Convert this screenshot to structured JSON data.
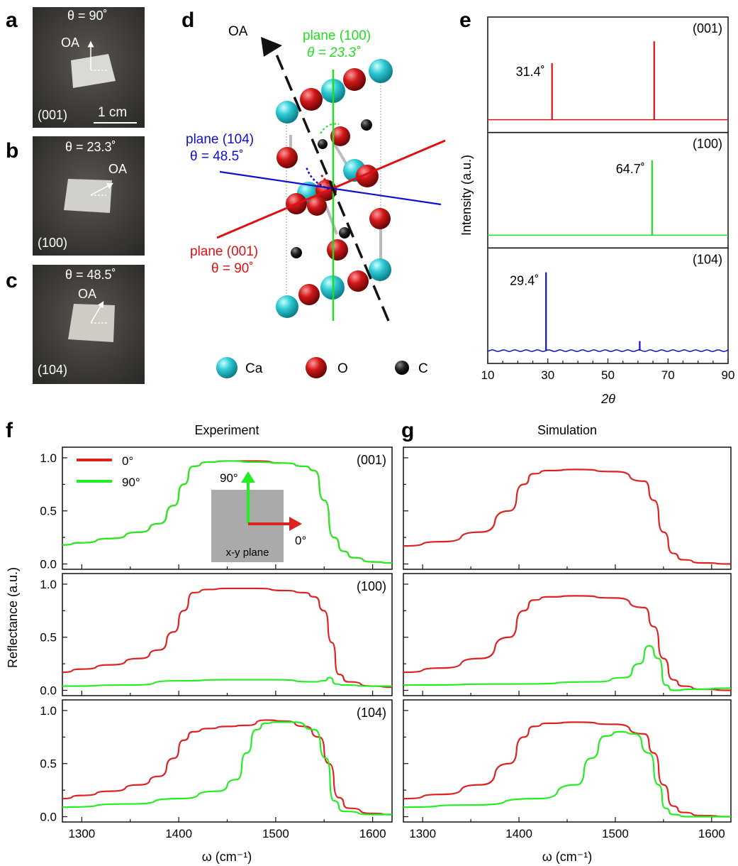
{
  "photos": [
    {
      "letter": "a",
      "theta": "θ = 90˚",
      "oa": "OA",
      "plane": "(001)",
      "scale": "1 cm"
    },
    {
      "letter": "b",
      "theta": "θ = 23.3˚",
      "oa": "OA",
      "plane": "(100)"
    },
    {
      "letter": "c",
      "theta": "θ = 48.5˚",
      "oa": "OA",
      "plane": "(104)"
    }
  ],
  "crystal": {
    "letter": "d",
    "oa": "OA",
    "plane100": {
      "name": "plane (100)",
      "theta": "θ = 23.3˚",
      "color": "#22dd22"
    },
    "plane104": {
      "name": "plane (104)",
      "theta": "θ = 48.5˚",
      "color": "#1010cc"
    },
    "plane001": {
      "name": "plane (001)",
      "theta": "θ = 90˚",
      "color": "#dd1111"
    },
    "legend": [
      {
        "atom": "Ca",
        "color": "#2ec9d3"
      },
      {
        "atom": "O",
        "color": "#d01818"
      },
      {
        "atom": "C",
        "color": "#111111"
      }
    ]
  },
  "xrd": {
    "letter": "e",
    "ylabel": "Intensity (a.u.)",
    "xlabel": "2θ",
    "xticks": [
      "10",
      "30",
      "50",
      "70",
      "90"
    ]
  },
  "refl": {
    "letter_f": "f",
    "letter_g": "g",
    "title_f": "Experiment",
    "title_g": "Simulation",
    "ylabel": "Reflectance (a.u.)",
    "xlabel": "ω (cm⁻¹)",
    "xticks": [
      "1300",
      "1400",
      "1500",
      "1600"
    ],
    "yticks": [
      "0.0",
      "0.5",
      "1.0"
    ],
    "legend": [
      {
        "label": "0°",
        "color": "#dd2222"
      },
      {
        "label": "90°",
        "color": "#22ee22"
      }
    ],
    "inset": {
      "v": "90°",
      "h": "0°",
      "plane": "x-y plane"
    }
  },
  "chart_data": [
    {
      "type": "line",
      "title": "",
      "xlabel": "2θ",
      "ylabel": "Intensity (a.u.)",
      "xlim": [
        10,
        90
      ],
      "panels": [
        {
          "label": "(001)",
          "color": "#dd1111",
          "peaks": [
            {
              "x": 31.4,
              "h": 0.65,
              "text": "31.4˚"
            },
            {
              "x": 65.4,
              "h": 0.9
            }
          ]
        },
        {
          "label": "(100)",
          "color": "#22dd22",
          "peaks": [
            {
              "x": 64.7,
              "h": 0.86,
              "text": "64.7˚"
            }
          ]
        },
        {
          "label": "(104)",
          "color": "#1010cc",
          "peaks": [
            {
              "x": 29.4,
              "h": 0.9,
              "text": "29.4˚"
            },
            {
              "x": 60.6,
              "h": 0.11
            }
          ]
        }
      ]
    },
    {
      "type": "line",
      "title": "Experiment",
      "xlabel": "ω (cm⁻¹)",
      "ylabel": "Reflectance (a.u.)",
      "xlim": [
        1280,
        1620
      ],
      "ylim": [
        -0.05,
        1.1
      ],
      "panels": [
        {
          "label": "(001)",
          "series": [
            {
              "name": "0°",
              "color": "#dd2222",
              "x": [
                1280,
                1300,
                1330,
                1360,
                1380,
                1395,
                1405,
                1415,
                1430,
                1450,
                1480,
                1510,
                1530,
                1540,
                1550,
                1560,
                1570,
                1580,
                1600,
                1620
              ],
              "y": [
                0.18,
                0.2,
                0.24,
                0.3,
                0.38,
                0.55,
                0.75,
                0.92,
                0.96,
                0.97,
                0.97,
                0.95,
                0.92,
                0.88,
                0.6,
                0.25,
                0.12,
                0.06,
                0.02,
                0.01
              ]
            },
            {
              "name": "90°",
              "color": "#22ee22",
              "x": [
                1280,
                1300,
                1330,
                1360,
                1380,
                1395,
                1405,
                1415,
                1430,
                1450,
                1480,
                1510,
                1530,
                1540,
                1550,
                1560,
                1570,
                1580,
                1600,
                1620
              ],
              "y": [
                0.18,
                0.2,
                0.24,
                0.3,
                0.38,
                0.55,
                0.75,
                0.92,
                0.96,
                0.97,
                0.96,
                0.95,
                0.92,
                0.88,
                0.6,
                0.25,
                0.12,
                0.06,
                0.02,
                0.01
              ]
            }
          ]
        },
        {
          "label": "(100)",
          "series": [
            {
              "name": "0°",
              "color": "#dd2222",
              "x": [
                1280,
                1300,
                1330,
                1360,
                1380,
                1395,
                1405,
                1415,
                1430,
                1450,
                1480,
                1510,
                1530,
                1540,
                1550,
                1558,
                1565,
                1575,
                1600,
                1620
              ],
              "y": [
                0.17,
                0.2,
                0.24,
                0.3,
                0.38,
                0.55,
                0.75,
                0.92,
                0.95,
                0.96,
                0.96,
                0.94,
                0.92,
                0.88,
                0.75,
                0.45,
                0.15,
                0.08,
                0.04,
                0.03
              ]
            },
            {
              "name": "90°",
              "color": "#22ee22",
              "x": [
                1280,
                1350,
                1400,
                1450,
                1500,
                1540,
                1550,
                1556,
                1562,
                1570,
                1600,
                1620
              ],
              "y": [
                0.04,
                0.05,
                0.09,
                0.1,
                0.1,
                0.08,
                0.09,
                0.12,
                0.06,
                0.05,
                0.04,
                0.04
              ]
            }
          ]
        },
        {
          "label": "(104)",
          "series": [
            {
              "name": "0°",
              "color": "#dd2222",
              "x": [
                1280,
                1300,
                1330,
                1360,
                1380,
                1395,
                1405,
                1415,
                1430,
                1450,
                1470,
                1490,
                1510,
                1530,
                1545,
                1555,
                1565,
                1575,
                1600,
                1620
              ],
              "y": [
                0.17,
                0.2,
                0.24,
                0.3,
                0.38,
                0.55,
                0.72,
                0.8,
                0.83,
                0.85,
                0.86,
                0.91,
                0.9,
                0.85,
                0.75,
                0.5,
                0.18,
                0.08,
                0.03,
                0.02
              ]
            },
            {
              "name": "90°",
              "color": "#22ee22",
              "x": [
                1280,
                1350,
                1400,
                1440,
                1460,
                1470,
                1480,
                1490,
                1500,
                1520,
                1540,
                1552,
                1560,
                1570,
                1600,
                1620
              ],
              "y": [
                0.09,
                0.12,
                0.17,
                0.24,
                0.35,
                0.6,
                0.82,
                0.88,
                0.89,
                0.89,
                0.82,
                0.55,
                0.15,
                0.05,
                0.02,
                0.02
              ]
            }
          ]
        }
      ]
    },
    {
      "type": "line",
      "title": "Simulation",
      "xlabel": "ω (cm⁻¹)",
      "ylabel": "Reflectance (a.u.)",
      "xlim": [
        1280,
        1620
      ],
      "ylim": [
        -0.05,
        1.1
      ],
      "panels": [
        {
          "label": "(001)",
          "series": [
            {
              "name": "0°",
              "color": "#dd2222",
              "x": [
                1280,
                1320,
                1360,
                1390,
                1405,
                1415,
                1430,
                1460,
                1500,
                1530,
                1540,
                1550,
                1560,
                1570,
                1590,
                1620
              ],
              "y": [
                0.17,
                0.21,
                0.3,
                0.5,
                0.75,
                0.85,
                0.88,
                0.89,
                0.87,
                0.78,
                0.6,
                0.3,
                0.1,
                0.04,
                0.01,
                0.0
              ]
            }
          ]
        },
        {
          "label": "(100)",
          "series": [
            {
              "name": "0°",
              "color": "#dd2222",
              "x": [
                1280,
                1320,
                1360,
                1390,
                1405,
                1415,
                1430,
                1460,
                1500,
                1530,
                1540,
                1550,
                1560,
                1570,
                1590,
                1620
              ],
              "y": [
                0.17,
                0.21,
                0.3,
                0.5,
                0.75,
                0.85,
                0.88,
                0.89,
                0.87,
                0.78,
                0.6,
                0.3,
                0.1,
                0.04,
                0.01,
                0.0
              ]
            },
            {
              "name": "90°",
              "color": "#22ee22",
              "x": [
                1280,
                1400,
                1480,
                1510,
                1525,
                1535,
                1545,
                1552,
                1560,
                1580,
                1620
              ],
              "y": [
                0.05,
                0.06,
                0.08,
                0.12,
                0.25,
                0.42,
                0.3,
                0.05,
                0.0,
                0.01,
                0.02
              ]
            }
          ]
        },
        {
          "label": "(104)",
          "series": [
            {
              "name": "0°",
              "color": "#dd2222",
              "x": [
                1280,
                1320,
                1360,
                1390,
                1405,
                1415,
                1430,
                1460,
                1500,
                1530,
                1540,
                1550,
                1560,
                1570,
                1590,
                1620
              ],
              "y": [
                0.17,
                0.21,
                0.3,
                0.5,
                0.75,
                0.85,
                0.88,
                0.89,
                0.87,
                0.78,
                0.6,
                0.3,
                0.1,
                0.04,
                0.01,
                0.0
              ]
            },
            {
              "name": "90°",
              "color": "#22ee22",
              "x": [
                1280,
                1350,
                1420,
                1460,
                1475,
                1490,
                1505,
                1520,
                1535,
                1545,
                1552,
                1560,
                1575,
                1620
              ],
              "y": [
                0.09,
                0.11,
                0.17,
                0.3,
                0.55,
                0.76,
                0.8,
                0.78,
                0.6,
                0.3,
                0.08,
                0.02,
                0.0,
                0.0
              ]
            }
          ]
        }
      ]
    }
  ]
}
